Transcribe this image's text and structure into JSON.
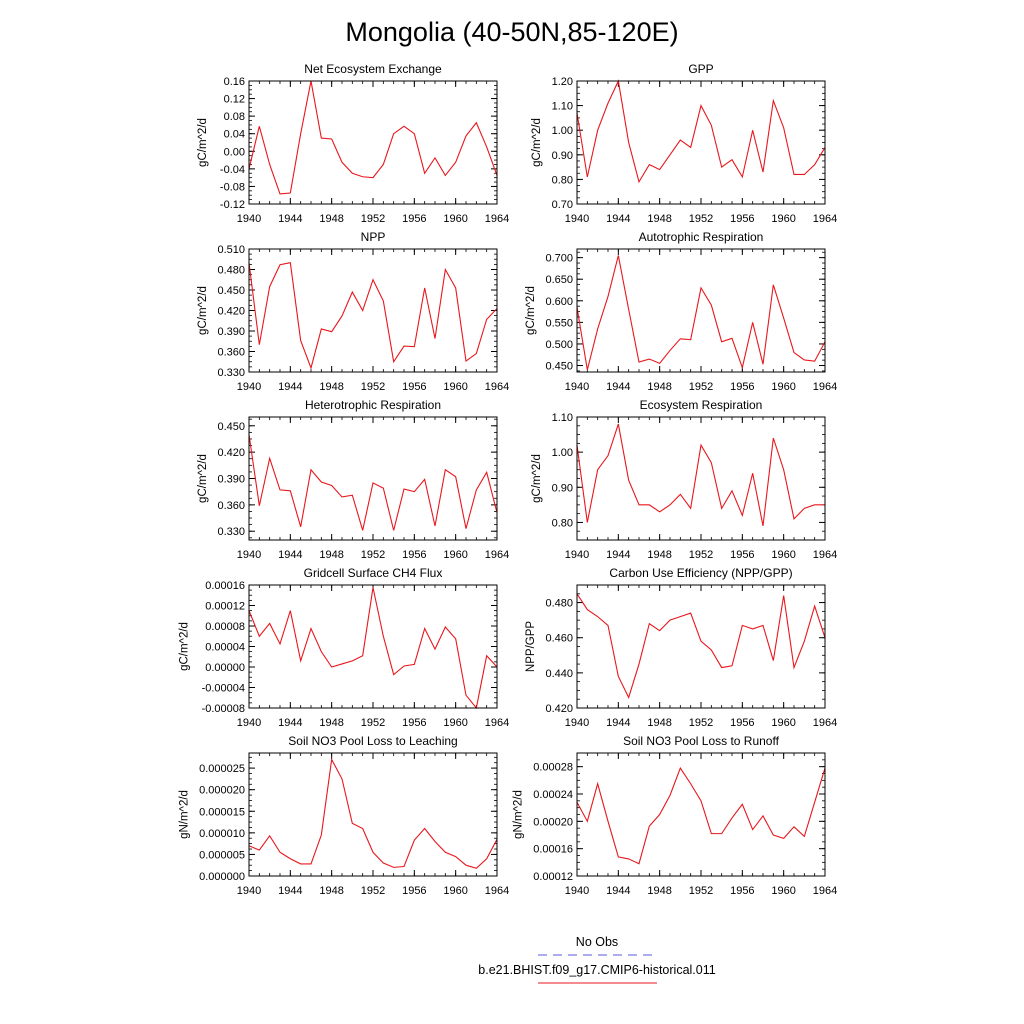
{
  "title": "Mongolia (40-50N,85-120E)",
  "colors": {
    "model": "#e8171c",
    "obs": "#5a5ae0"
  },
  "legend": {
    "obs_label": "No Obs",
    "model_label": "b.e21.BHIST.f09_g17.CMIP6-historical.011"
  },
  "chart_data": [
    {
      "type": "line",
      "title": "Net Ecosystem Exchange",
      "ylabel": "gC/m^2/d",
      "xlim": [
        1940,
        1964
      ],
      "xticks": [
        "1940",
        "1944",
        "1948",
        "1952",
        "1956",
        "1960",
        "1964"
      ],
      "ylim": [
        -0.12,
        0.16
      ],
      "yticks": [
        "-0.12",
        "-0.08",
        "-0.04",
        "0.00",
        "0.04",
        "0.08",
        "0.12",
        "0.16"
      ],
      "x": [
        1940,
        1941,
        1942,
        1943,
        1944,
        1945,
        1946,
        1947,
        1948,
        1949,
        1950,
        1951,
        1952,
        1953,
        1954,
        1955,
        1956,
        1957,
        1958,
        1959,
        1960,
        1961,
        1962,
        1963,
        1964
      ],
      "series": [
        {
          "values": [
            -0.04,
            0.057,
            -0.03,
            -0.097,
            -0.095,
            0.04,
            0.16,
            0.03,
            0.028,
            -0.025,
            -0.05,
            -0.058,
            -0.06,
            -0.03,
            0.04,
            0.057,
            0.04,
            -0.05,
            -0.015,
            -0.055,
            -0.025,
            0.035,
            0.065,
            0.01,
            -0.055
          ]
        }
      ]
    },
    {
      "type": "line",
      "title": "GPP",
      "ylabel": "gC/m^2/d",
      "xlim": [
        1940,
        1964
      ],
      "xticks": [
        "1940",
        "1944",
        "1948",
        "1952",
        "1956",
        "1960",
        "1964"
      ],
      "ylim": [
        0.7,
        1.2
      ],
      "yticks": [
        "0.70",
        "0.80",
        "0.90",
        "1.00",
        "1.10",
        "1.20"
      ],
      "x": [
        1940,
        1941,
        1942,
        1943,
        1944,
        1945,
        1946,
        1947,
        1948,
        1949,
        1950,
        1951,
        1952,
        1953,
        1954,
        1955,
        1956,
        1957,
        1958,
        1959,
        1960,
        1961,
        1962,
        1963,
        1964
      ],
      "series": [
        {
          "values": [
            1.07,
            0.81,
            1.0,
            1.11,
            1.2,
            0.95,
            0.79,
            0.86,
            0.84,
            0.9,
            0.96,
            0.93,
            1.1,
            1.02,
            0.85,
            0.88,
            0.81,
            1.0,
            0.83,
            1.12,
            1.01,
            0.82,
            0.82,
            0.86,
            0.93
          ]
        }
      ]
    },
    {
      "type": "line",
      "title": "NPP",
      "ylabel": "gC/m^2/d",
      "xlim": [
        1940,
        1964
      ],
      "xticks": [
        "1940",
        "1944",
        "1948",
        "1952",
        "1956",
        "1960",
        "1964"
      ],
      "ylim": [
        0.33,
        0.51
      ],
      "yticks": [
        "0.330",
        "0.360",
        "0.390",
        "0.420",
        "0.450",
        "0.480",
        "0.510"
      ],
      "x": [
        1940,
        1941,
        1942,
        1943,
        1944,
        1945,
        1946,
        1947,
        1948,
        1949,
        1950,
        1951,
        1952,
        1953,
        1954,
        1955,
        1956,
        1957,
        1958,
        1959,
        1960,
        1961,
        1962,
        1963,
        1964
      ],
      "series": [
        {
          "values": [
            0.49,
            0.37,
            0.455,
            0.487,
            0.49,
            0.376,
            0.336,
            0.393,
            0.389,
            0.412,
            0.447,
            0.42,
            0.465,
            0.434,
            0.345,
            0.368,
            0.367,
            0.453,
            0.379,
            0.48,
            0.453,
            0.346,
            0.357,
            0.407,
            0.423
          ]
        }
      ]
    },
    {
      "type": "line",
      "title": "Autotrophic Respiration",
      "ylabel": "gC/m^2/d",
      "xlim": [
        1940,
        1964
      ],
      "xticks": [
        "1940",
        "1944",
        "1948",
        "1952",
        "1956",
        "1960",
        "1964"
      ],
      "ylim": [
        0.435,
        0.72
      ],
      "yticks": [
        "0.450",
        "0.500",
        "0.550",
        "0.600",
        "0.650",
        "0.700"
      ],
      "x": [
        1940,
        1941,
        1942,
        1943,
        1944,
        1945,
        1946,
        1947,
        1948,
        1949,
        1950,
        1951,
        1952,
        1953,
        1954,
        1955,
        1956,
        1957,
        1958,
        1959,
        1960,
        1961,
        1962,
        1963,
        1964
      ],
      "series": [
        {
          "values": [
            0.585,
            0.44,
            0.535,
            0.61,
            0.705,
            0.58,
            0.458,
            0.465,
            0.455,
            0.485,
            0.512,
            0.51,
            0.63,
            0.59,
            0.505,
            0.513,
            0.445,
            0.55,
            0.453,
            0.637,
            0.56,
            0.48,
            0.463,
            0.46,
            0.505
          ]
        }
      ]
    },
    {
      "type": "line",
      "title": "Heterotrophic Respiration",
      "ylabel": "gC/m^2/d",
      "xlim": [
        1940,
        1964
      ],
      "xticks": [
        "1940",
        "1944",
        "1948",
        "1952",
        "1956",
        "1960",
        "1964"
      ],
      "ylim": [
        0.32,
        0.46
      ],
      "yticks": [
        "0.330",
        "0.360",
        "0.390",
        "0.420",
        "0.450"
      ],
      "x": [
        1940,
        1941,
        1942,
        1943,
        1944,
        1945,
        1946,
        1947,
        1948,
        1949,
        1950,
        1951,
        1952,
        1953,
        1954,
        1955,
        1956,
        1957,
        1958,
        1959,
        1960,
        1961,
        1962,
        1963,
        1964
      ],
      "series": [
        {
          "values": [
            0.44,
            0.359,
            0.413,
            0.377,
            0.376,
            0.335,
            0.4,
            0.386,
            0.382,
            0.369,
            0.371,
            0.331,
            0.385,
            0.379,
            0.331,
            0.378,
            0.375,
            0.389,
            0.336,
            0.4,
            0.392,
            0.333,
            0.377,
            0.397,
            0.351
          ]
        }
      ]
    },
    {
      "type": "line",
      "title": "Ecosystem Respiration",
      "ylabel": "gC/m^2/d",
      "xlim": [
        1940,
        1964
      ],
      "xticks": [
        "1940",
        "1944",
        "1948",
        "1952",
        "1956",
        "1960",
        "1964"
      ],
      "ylim": [
        0.75,
        1.1
      ],
      "yticks": [
        "0.80",
        "0.90",
        "1.00",
        "1.10"
      ],
      "x": [
        1940,
        1941,
        1942,
        1943,
        1944,
        1945,
        1946,
        1947,
        1948,
        1949,
        1950,
        1951,
        1952,
        1953,
        1954,
        1955,
        1956,
        1957,
        1958,
        1959,
        1960,
        1961,
        1962,
        1963,
        1964
      ],
      "series": [
        {
          "values": [
            1.02,
            0.8,
            0.95,
            0.99,
            1.08,
            0.92,
            0.85,
            0.85,
            0.83,
            0.85,
            0.88,
            0.84,
            1.02,
            0.97,
            0.84,
            0.89,
            0.82,
            0.94,
            0.79,
            1.04,
            0.95,
            0.81,
            0.84,
            0.85,
            0.85
          ]
        }
      ]
    },
    {
      "type": "line",
      "title": "Gridcell Surface CH4 Flux",
      "ylabel": "gC/m^2/d",
      "xlim": [
        1940,
        1964
      ],
      "xticks": [
        "1940",
        "1944",
        "1948",
        "1952",
        "1956",
        "1960",
        "1964"
      ],
      "ylim": [
        -8e-05,
        0.00016
      ],
      "yticks": [
        "-0.00008",
        "-0.00004",
        "0.00000",
        "0.00004",
        "0.00008",
        "0.00012",
        "0.00016"
      ],
      "x": [
        1940,
        1941,
        1942,
        1943,
        1944,
        1945,
        1946,
        1947,
        1948,
        1949,
        1950,
        1951,
        1952,
        1953,
        1954,
        1955,
        1956,
        1957,
        1958,
        1959,
        1960,
        1961,
        1962,
        1963,
        1964
      ],
      "series": [
        {
          "values": [
            0.00011,
            6e-05,
            8.5e-05,
            4.5e-05,
            0.00011,
            1.2e-05,
            7.5e-05,
            3e-05,
            0.0,
            6e-06,
            1.2e-05,
            2.2e-05,
            0.000155,
            6e-05,
            -1.5e-05,
            2e-06,
            5e-06,
            7.5e-05,
            3.5e-05,
            7.8e-05,
            5.5e-05,
            -5.5e-05,
            -8e-05,
            2.2e-05,
            0.0
          ]
        }
      ]
    },
    {
      "type": "line",
      "title": "Carbon Use Efficiency (NPP/GPP)",
      "ylabel": "NPP/GPP",
      "xlim": [
        1940,
        1964
      ],
      "xticks": [
        "1940",
        "1944",
        "1948",
        "1952",
        "1956",
        "1960",
        "1964"
      ],
      "ylim": [
        0.42,
        0.49
      ],
      "yticks": [
        "0.420",
        "0.440",
        "0.460",
        "0.480"
      ],
      "x": [
        1940,
        1941,
        1942,
        1943,
        1944,
        1945,
        1946,
        1947,
        1948,
        1949,
        1950,
        1951,
        1952,
        1953,
        1954,
        1955,
        1956,
        1957,
        1958,
        1959,
        1960,
        1961,
        1962,
        1963,
        1964
      ],
      "series": [
        {
          "values": [
            0.485,
            0.476,
            0.472,
            0.467,
            0.438,
            0.426,
            0.445,
            0.468,
            0.464,
            0.47,
            0.472,
            0.474,
            0.458,
            0.453,
            0.443,
            0.444,
            0.467,
            0.465,
            0.467,
            0.447,
            0.484,
            0.443,
            0.458,
            0.478,
            0.46
          ]
        }
      ]
    },
    {
      "type": "line",
      "title": "Soil NO3 Pool Loss to Leaching",
      "ylabel": "gN/m^2/d",
      "xlim": [
        1940,
        1964
      ],
      "xticks": [
        "1940",
        "1944",
        "1948",
        "1952",
        "1956",
        "1960",
        "1964"
      ],
      "ylim": [
        0.0,
        2.85e-05
      ],
      "yticks": [
        "0.000000",
        "0.000005",
        "0.000010",
        "0.000015",
        "0.000020",
        "0.000025"
      ],
      "x": [
        1940,
        1941,
        1942,
        1943,
        1944,
        1945,
        1946,
        1947,
        1948,
        1949,
        1950,
        1951,
        1952,
        1953,
        1954,
        1955,
        1956,
        1957,
        1958,
        1959,
        1960,
        1961,
        1962,
        1963,
        1964
      ],
      "series": [
        {
          "values": [
            7e-06,
            6e-06,
            9.3e-06,
            5.5e-06,
            4e-06,
            2.8e-06,
            2.8e-06,
            9.5e-06,
            2.7e-05,
            2.25e-05,
            1.22e-05,
            1.1e-05,
            5.5e-06,
            3e-06,
            2e-06,
            2.2e-06,
            8.3e-06,
            1.1e-05,
            8e-06,
            5.5e-06,
            4.5e-06,
            2.5e-06,
            1.8e-06,
            4e-06,
            8.5e-06
          ]
        }
      ]
    },
    {
      "type": "line",
      "title": "Soil NO3 Pool Loss to Runoff",
      "ylabel": "gN/m^2/d",
      "xlim": [
        1940,
        1964
      ],
      "xticks": [
        "1940",
        "1944",
        "1948",
        "1952",
        "1956",
        "1960",
        "1964"
      ],
      "ylim": [
        0.00012,
        0.0003
      ],
      "yticks": [
        "0.00012",
        "0.00016",
        "0.00020",
        "0.00024",
        "0.00028"
      ],
      "x": [
        1940,
        1941,
        1942,
        1943,
        1944,
        1945,
        1946,
        1947,
        1948,
        1949,
        1950,
        1951,
        1952,
        1953,
        1954,
        1955,
        1956,
        1957,
        1958,
        1959,
        1960,
        1961,
        1962,
        1963,
        1964
      ],
      "series": [
        {
          "values": [
            0.000228,
            0.0002,
            0.000255,
            0.0002,
            0.000148,
            0.000145,
            0.000138,
            0.000193,
            0.00021,
            0.000238,
            0.000278,
            0.000255,
            0.00023,
            0.000182,
            0.000182,
            0.000205,
            0.000225,
            0.000188,
            0.000208,
            0.00018,
            0.000175,
            0.000192,
            0.000178,
            0.000228,
            0.000278
          ]
        }
      ]
    }
  ]
}
